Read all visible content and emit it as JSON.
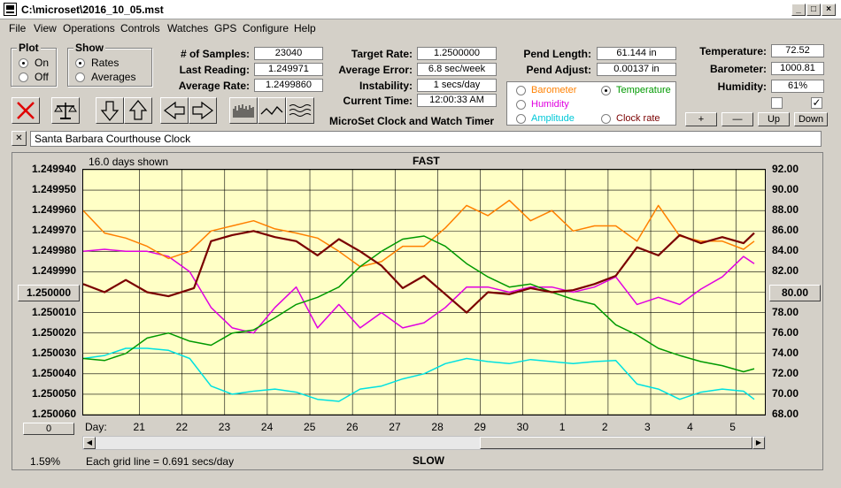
{
  "window": {
    "title": "C:\\microset\\2016_10_05.mst"
  },
  "menu": [
    "File",
    "View",
    "Operations",
    "Controls",
    "Watches",
    "GPS",
    "Configure",
    "Help"
  ],
  "plot_group": {
    "title": "Plot",
    "on": "On",
    "off": "Off",
    "selected": "On"
  },
  "show_group": {
    "title": "Show",
    "rates": "Rates",
    "averages": "Averages",
    "selected": "Rates"
  },
  "stats": {
    "samples_label": "# of Samples:",
    "samples": "23040",
    "last_label": "Last Reading:",
    "last": "1.249971",
    "avg_label": "Average Rate:",
    "avg": "1.2499860",
    "target_label": "Target Rate:",
    "target": "1.2500000",
    "err_label": "Average Error:",
    "err": "6.8 sec/week",
    "inst_label": "Instability:",
    "inst": "1 secs/day",
    "time_label": "Current Time:",
    "time": "12:00:33 AM",
    "pend_len_label": "Pend Length:",
    "pend_len": "61.144 in",
    "pend_adj_label": "Pend Adjust:",
    "pend_adj": "0.00137 in",
    "temp_label": "Temperature:",
    "temp": "72.52",
    "baro_label": "Barometer:",
    "baro": "1000.81",
    "hum_label": "Humidity:",
    "hum": "61%"
  },
  "app_name": "MicroSet Clock and Watch Timer",
  "channels": {
    "barometer": "Barometer",
    "temperature": "Temperature",
    "humidity": "Humidity",
    "amplitude": "Amplitude",
    "clock_rate": "Clock rate",
    "selected": "Temperature"
  },
  "channel_buttons": {
    "plus": "+",
    "minus": "—",
    "up": "Up",
    "down": "Down"
  },
  "clock_name": "Santa Barbara Courthouse Clock",
  "close_glyph": "✕",
  "graph": {
    "days_shown": "16.0 days shown",
    "fast": "FAST",
    "slow": "SLOW",
    "center_left": "1.250000",
    "center_right": "80.00",
    "grid_note": "Each grid line = 0.691 secs/day",
    "percent": "1.59%",
    "offset_button": "0",
    "day_label": "Day:"
  },
  "colors": {
    "rate": "#7a0000",
    "temperature": "#009900",
    "barometer": "#ff8000",
    "humidity": "#e000e0",
    "amplitude": "#00e0e0",
    "plot_bg": "#ffffc6"
  },
  "chart_data": {
    "type": "line",
    "y_left_ticks": [
      "1.249940",
      "1.249950",
      "1.249960",
      "1.249970",
      "1.249980",
      "1.249990",
      "1.250000",
      "1.250010",
      "1.250020",
      "1.250030",
      "1.250040",
      "1.250050",
      "1.250060"
    ],
    "y_right_ticks": [
      "92.00",
      "90.00",
      "88.00",
      "86.00",
      "84.00",
      "82.00",
      "80.00",
      "78.00",
      "76.00",
      "74.00",
      "72.00",
      "70.00",
      "68.00"
    ],
    "y_left_range": [
      1.24994,
      1.25006
    ],
    "y_right_range": [
      68,
      92
    ],
    "x_ticks": [
      "21",
      "22",
      "23",
      "24",
      "25",
      "26",
      "27",
      "28",
      "29",
      "30",
      "1",
      "2",
      "3",
      "4",
      "5"
    ],
    "x_range": [
      0,
      16
    ],
    "x_tick_positions": [
      1.32,
      2.32,
      3.32,
      4.32,
      5.32,
      6.32,
      7.32,
      8.32,
      9.32,
      10.32,
      11.32,
      12.32,
      13.32,
      14.32,
      15.32
    ],
    "series": [
      {
        "name": "Clock rate",
        "axis": "left",
        "x": [
          0,
          0.5,
          1,
          1.5,
          2,
          2.6,
          3,
          3.5,
          4,
          4.5,
          5,
          5.5,
          6,
          6.5,
          7,
          7.5,
          8,
          8.5,
          9,
          9.5,
          10,
          10.5,
          11,
          11.5,
          12,
          12.5,
          13,
          13.5,
          14,
          14.5,
          15,
          15.5,
          15.75
        ],
        "y": [
          1.249996,
          1.25,
          1.249994,
          1.25,
          1.250002,
          1.249998,
          1.249975,
          1.249972,
          1.24997,
          1.249973,
          1.249975,
          1.249982,
          1.249974,
          1.24998,
          1.249987,
          1.249998,
          1.249992,
          1.250001,
          1.25001,
          1.25,
          1.250001,
          1.249998,
          1.25,
          1.249999,
          1.249996,
          1.249992,
          1.249978,
          1.249982,
          1.249972,
          1.249976,
          1.249973,
          1.249976,
          1.249971
        ]
      },
      {
        "name": "Temperature",
        "axis": "right",
        "x": [
          0,
          0.5,
          1,
          1.5,
          2,
          2.5,
          3,
          3.5,
          4,
          4.5,
          5,
          5.5,
          6,
          6.5,
          7,
          7.5,
          8,
          8.5,
          9,
          9.5,
          10,
          10.5,
          11,
          11.5,
          12,
          12.5,
          13,
          13.5,
          14,
          14.5,
          15,
          15.5,
          15.75
        ],
        "y": [
          73.5,
          73.3,
          74.0,
          75.5,
          76.0,
          75.2,
          74.8,
          76.0,
          76.3,
          77.5,
          78.8,
          79.5,
          80.5,
          82.5,
          84.0,
          85.2,
          85.5,
          84.5,
          82.8,
          81.5,
          80.5,
          80.8,
          80.0,
          79.3,
          78.8,
          76.8,
          75.8,
          74.5,
          73.8,
          73.2,
          72.8,
          72.2,
          72.5
        ]
      },
      {
        "name": "Barometer",
        "axis": "right",
        "x": [
          0,
          0.5,
          1,
          1.5,
          2,
          2.5,
          3,
          3.5,
          4,
          4.5,
          5,
          5.5,
          6,
          6.5,
          7,
          7.5,
          8,
          8.5,
          9,
          9.5,
          10,
          10.5,
          11,
          11.5,
          12,
          12.5,
          13,
          13.5,
          14,
          14.5,
          15,
          15.5,
          15.75
        ],
        "y": [
          88.0,
          85.8,
          85.3,
          84.5,
          83.3,
          84.0,
          86.0,
          86.5,
          87.0,
          86.2,
          85.8,
          85.3,
          84.0,
          82.5,
          83.0,
          84.5,
          84.5,
          86.3,
          88.5,
          87.5,
          89.0,
          87.0,
          88.0,
          86.0,
          86.5,
          86.5,
          85.0,
          88.5,
          85.5,
          85.0,
          85.0,
          84.2,
          85.0
        ]
      },
      {
        "name": "Humidity",
        "axis": "right",
        "x": [
          0,
          0.5,
          1,
          1.5,
          2,
          2.5,
          3,
          3.5,
          4,
          4.5,
          5,
          5.5,
          6,
          6.5,
          7,
          7.5,
          8,
          8.5,
          9,
          9.5,
          10,
          10.5,
          11,
          11.5,
          12,
          12.5,
          13,
          13.5,
          14,
          14.5,
          15,
          15.5,
          15.75
        ],
        "y": [
          84.0,
          84.2,
          84.0,
          84.0,
          83.5,
          82.0,
          78.5,
          76.5,
          76.0,
          78.5,
          80.5,
          76.5,
          78.8,
          76.5,
          78.0,
          76.5,
          77.0,
          78.5,
          80.5,
          80.5,
          80.0,
          80.5,
          80.5,
          80.0,
          80.5,
          81.5,
          78.8,
          79.5,
          78.8,
          80.3,
          81.5,
          83.5,
          82.8
        ]
      },
      {
        "name": "Amplitude",
        "axis": "right",
        "x": [
          0,
          0.5,
          1,
          1.5,
          2,
          2.5,
          3,
          3.5,
          4,
          4.5,
          5,
          5.5,
          6,
          6.5,
          7,
          7.5,
          8,
          8.5,
          9,
          9.5,
          10,
          10.5,
          11,
          11.5,
          12,
          12.5,
          13,
          13.5,
          14,
          14.5,
          15,
          15.5,
          15.75
        ],
        "y": [
          73.5,
          73.8,
          74.5,
          74.5,
          74.3,
          73.5,
          70.8,
          70.0,
          70.3,
          70.5,
          70.2,
          69.5,
          69.3,
          70.5,
          70.8,
          71.5,
          72.0,
          73.0,
          73.5,
          73.2,
          73.0,
          73.4,
          73.2,
          73.0,
          73.2,
          73.3,
          71.0,
          70.5,
          69.5,
          70.2,
          70.5,
          70.3,
          69.5
        ]
      }
    ]
  }
}
